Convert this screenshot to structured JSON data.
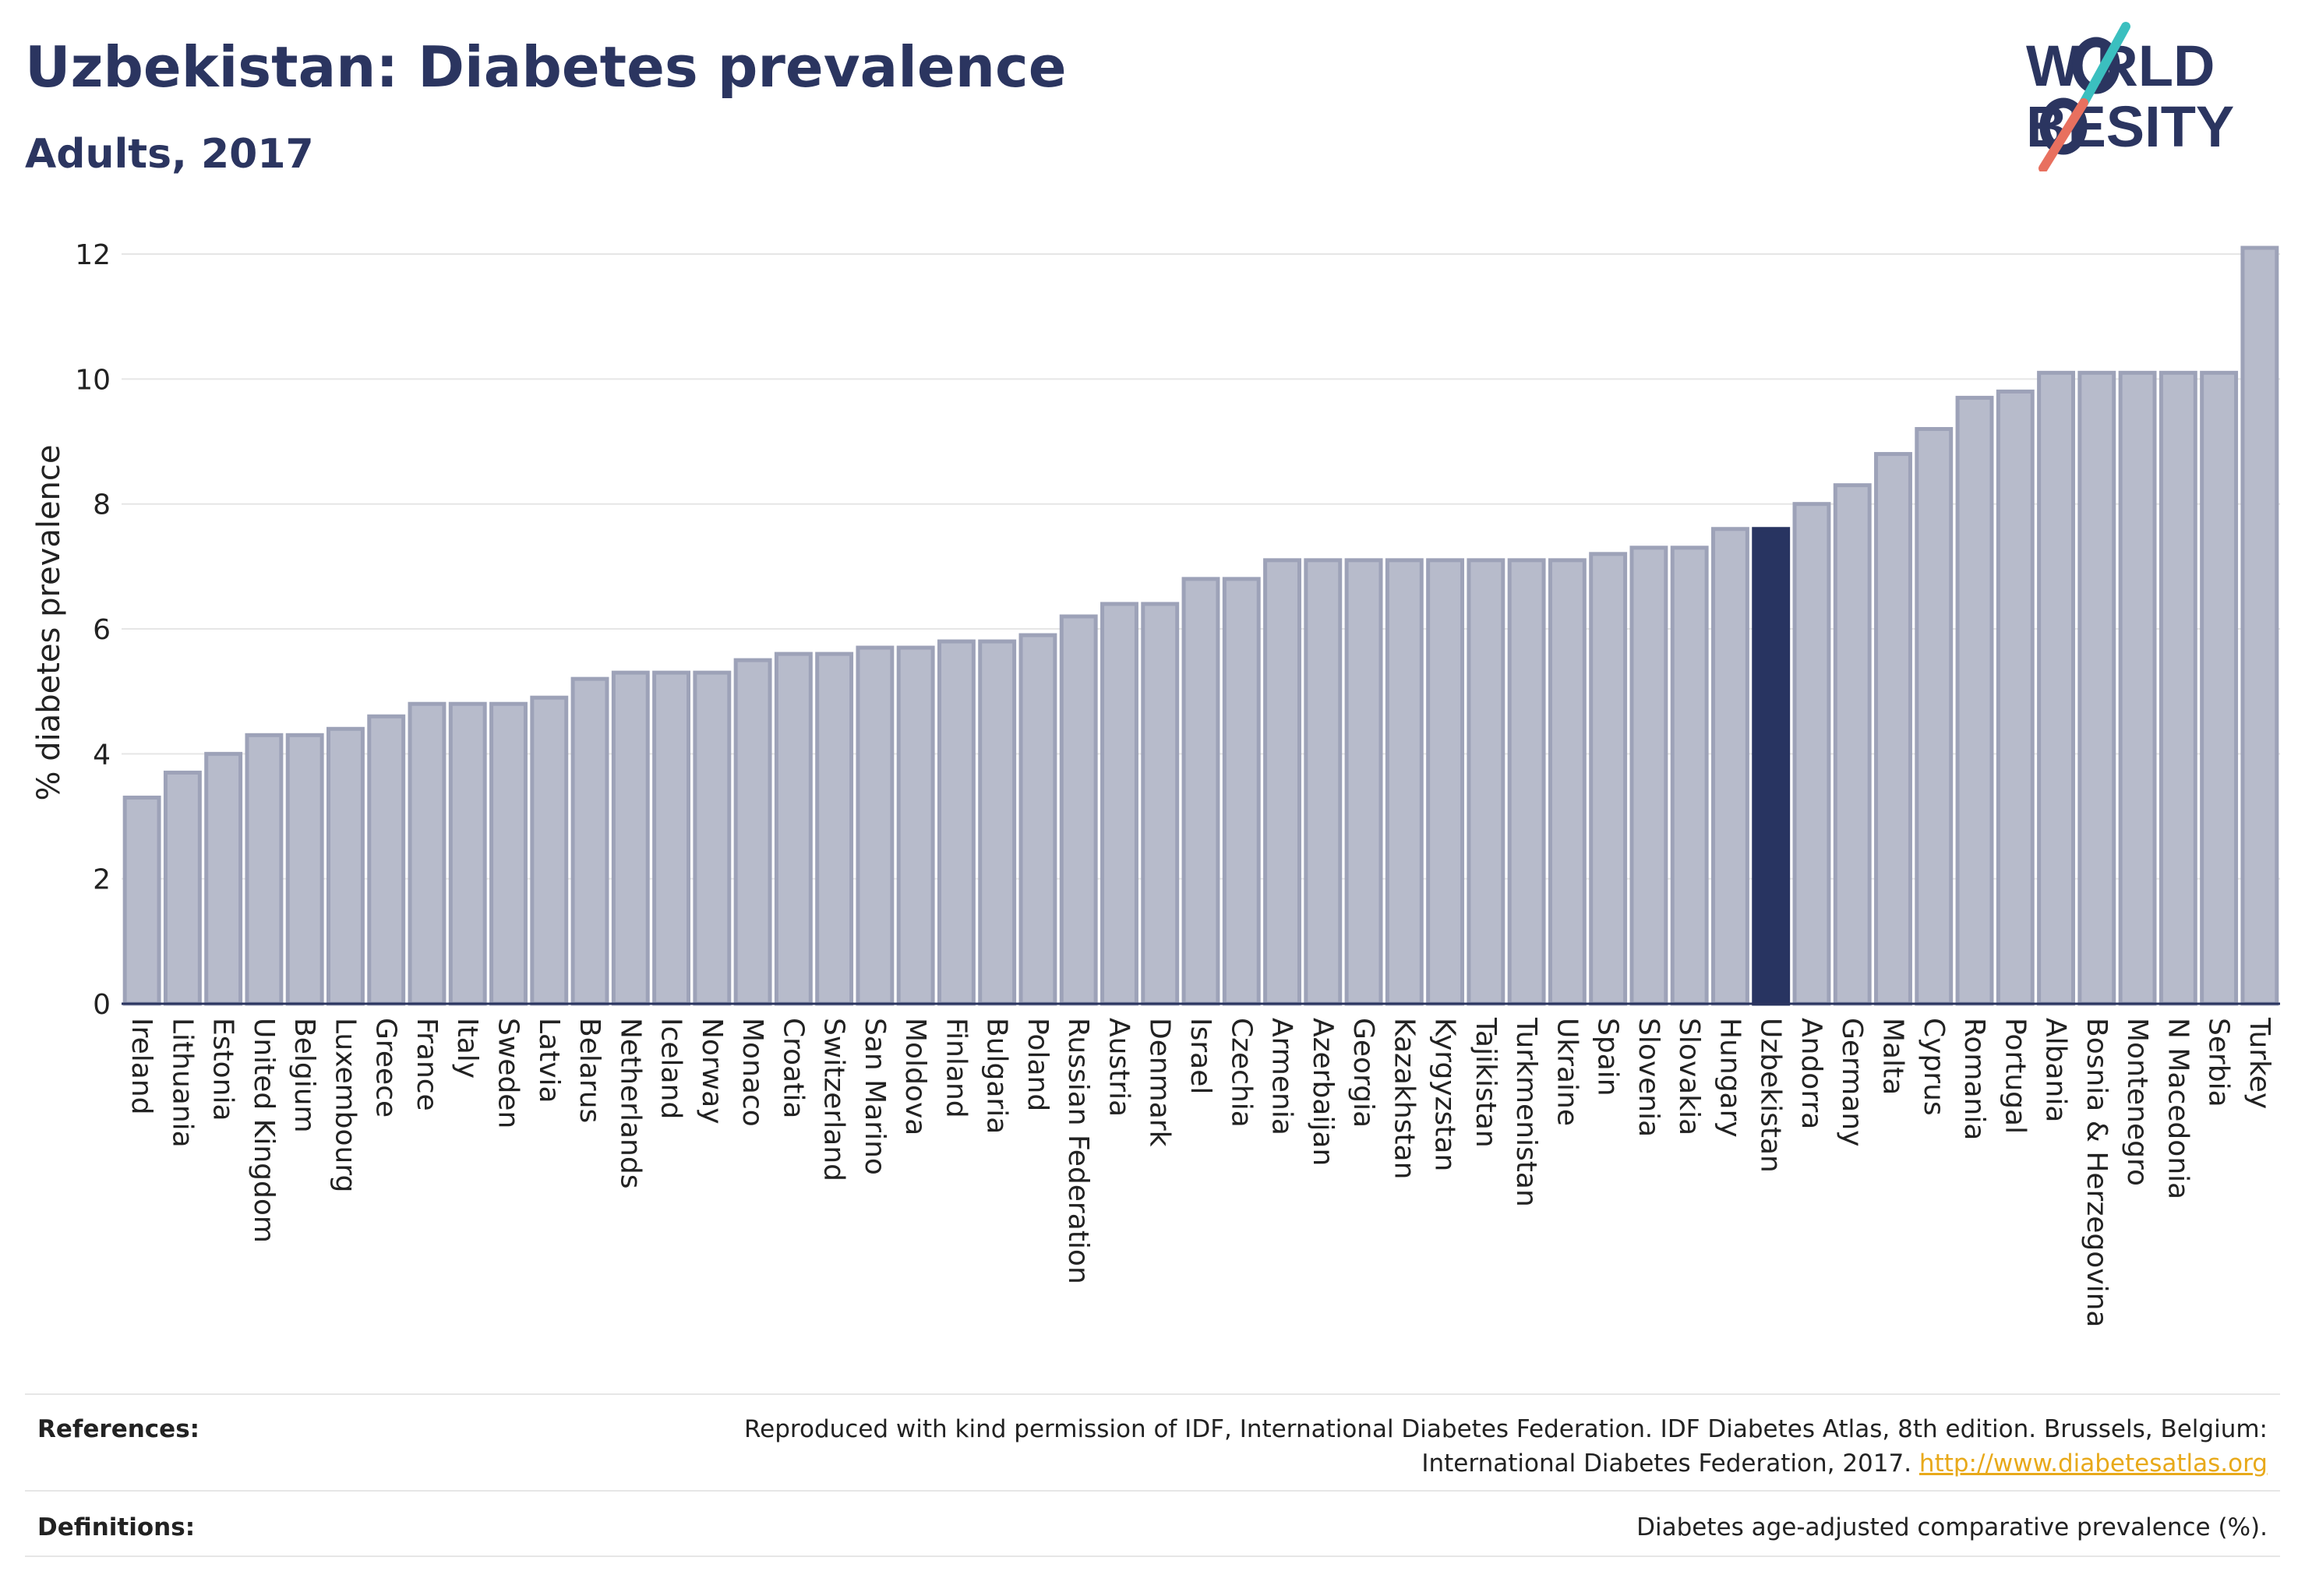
{
  "header": {
    "title": "Uzbekistan: Diabetes prevalence",
    "subtitle": "Adults, 2017"
  },
  "logo": {
    "line1": "W  RLD",
    "line2": "  BESITY",
    "colors": {
      "text": "#2b3560",
      "slash_teal": "#3bbfbf",
      "slash_coral": "#e8705f"
    }
  },
  "chart_data": {
    "type": "bar",
    "ylabel": "% diabetes prevalence",
    "ylim": [
      0,
      12.2
    ],
    "yticks": [
      0,
      2,
      4,
      6,
      8,
      10,
      12
    ],
    "grid": true,
    "highlight": "Uzbekistan",
    "colors": {
      "bar": "#b7bbcb",
      "bar_edge": "#9da2b8",
      "highlight": "#283461",
      "grid": "#e6e6e6",
      "axis": "#2b3560"
    },
    "categories": [
      "Ireland",
      "Lithuania",
      "Estonia",
      "United Kingdom",
      "Belgium",
      "Luxembourg",
      "Greece",
      "France",
      "Italy",
      "Sweden",
      "Latvia",
      "Belarus",
      "Netherlands",
      "Iceland",
      "Norway",
      "Monaco",
      "Croatia",
      "Switzerland",
      "San Marino",
      "Moldova",
      "Finland",
      "Bulgaria",
      "Poland",
      "Russian Federation",
      "Austria",
      "Denmark",
      "Israel",
      "Czechia",
      "Armenia",
      "Azerbaijan",
      "Georgia",
      "Kazakhstan",
      "Kyrgyzstan",
      "Tajikistan",
      "Turkmenistan",
      "Ukraine",
      "Spain",
      "Slovenia",
      "Slovakia",
      "Hungary",
      "Uzbekistan",
      "Andorra",
      "Germany",
      "Malta",
      "Cyprus",
      "Romania",
      "Portugal",
      "Albania",
      "Bosnia & Herzegovina",
      "Montenegro",
      "N Macedonia",
      "Serbia",
      "Turkey"
    ],
    "values": [
      3.3,
      3.7,
      4.0,
      4.3,
      4.3,
      4.4,
      4.6,
      4.8,
      4.8,
      4.8,
      4.9,
      5.2,
      5.3,
      5.3,
      5.3,
      5.5,
      5.6,
      5.6,
      5.7,
      5.7,
      5.8,
      5.8,
      5.9,
      6.2,
      6.4,
      6.4,
      6.8,
      6.8,
      7.1,
      7.1,
      7.1,
      7.1,
      7.1,
      7.1,
      7.1,
      7.1,
      7.2,
      7.3,
      7.3,
      7.6,
      7.6,
      8.0,
      8.3,
      8.8,
      9.2,
      9.7,
      9.8,
      10.1,
      10.1,
      10.1,
      10.1,
      10.1,
      12.1
    ]
  },
  "footer": {
    "references_label": "References:",
    "references_line1": "Reproduced with kind permission of IDF, International Diabetes Federation. IDF Diabetes Atlas, 8th edition. Brussels, Belgium:",
    "references_line2": "International Diabetes Federation, 2017. ",
    "references_link": "http://www.diabetesatlas.org",
    "definitions_label": "Definitions:",
    "definitions_text": "Diabetes age-adjusted comparative prevalence (%)."
  }
}
